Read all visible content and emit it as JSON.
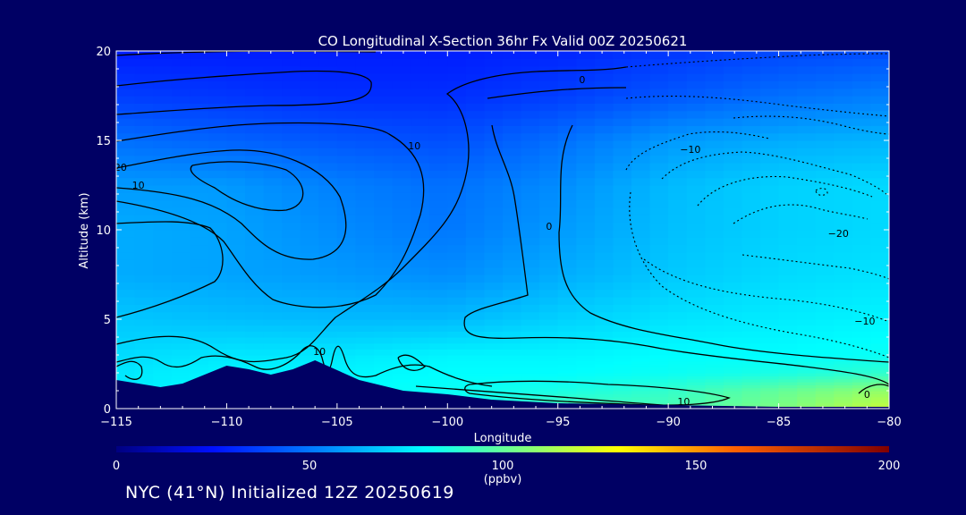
{
  "chart_data": {
    "type": "heatmap",
    "title": "CO Longitudinal X-Section 36hr  Fx Valid 00Z 20250621",
    "xlabel": "Longitude",
    "ylabel": "Altitude (km)",
    "xlim": [
      -115,
      -80
    ],
    "ylim": [
      0,
      20
    ],
    "x_ticks": [
      -115,
      -110,
      -105,
      -100,
      -95,
      -90,
      -85,
      -80
    ],
    "x_tick_labels": [
      "−115",
      "−110",
      "−105",
      "−100",
      "−95",
      "−90",
      "−85",
      "−80"
    ],
    "y_ticks": [
      0,
      5,
      10,
      15,
      20
    ],
    "x_grid": [
      -115,
      -110,
      -105,
      -100,
      -95,
      -90,
      -85,
      -80
    ],
    "y_grid": [
      0,
      1,
      2,
      3,
      5,
      7.5,
      10,
      12.5,
      15,
      17.5,
      20
    ],
    "co_field_ppbv": [
      [
        55,
        70,
        75,
        80,
        95,
        95,
        105,
        120
      ],
      [
        75,
        80,
        80,
        82,
        85,
        90,
        100,
        110
      ],
      [
        75,
        78,
        78,
        80,
        80,
        82,
        85,
        90
      ],
      [
        72,
        75,
        75,
        78,
        78,
        80,
        80,
        82
      ],
      [
        68,
        66,
        65,
        65,
        70,
        74,
        76,
        78
      ],
      [
        62,
        60,
        58,
        55,
        62,
        68,
        72,
        74
      ],
      [
        62,
        60,
        55,
        50,
        58,
        66,
        70,
        72
      ],
      [
        58,
        58,
        52,
        48,
        55,
        65,
        70,
        72
      ],
      [
        48,
        45,
        42,
        40,
        48,
        58,
        62,
        64
      ],
      [
        36,
        34,
        32,
        32,
        36,
        42,
        48,
        52
      ],
      [
        28,
        28,
        28,
        28,
        30,
        34,
        38,
        40
      ]
    ],
    "terrain_km": [
      [
        -115,
        1.6
      ],
      [
        -113,
        1.2
      ],
      [
        -112,
        1.4
      ],
      [
        -110,
        2.4
      ],
      [
        -109,
        2.2
      ],
      [
        -108,
        1.9
      ],
      [
        -107,
        2.2
      ],
      [
        -106,
        2.7
      ],
      [
        -104,
        1.6
      ],
      [
        -102,
        1.0
      ],
      [
        -100,
        0.8
      ],
      [
        -98,
        0.5
      ],
      [
        -95,
        0.3
      ],
      [
        -90,
        0.2
      ],
      [
        -85,
        0.1
      ],
      [
        -80,
        0.1
      ]
    ],
    "contour_labels": [
      {
        "text": "20",
        "x": -114.8,
        "y": 13.3
      },
      {
        "text": "10",
        "x": -114.0,
        "y": 12.3
      },
      {
        "text": "10",
        "x": -101.5,
        "y": 14.5
      },
      {
        "text": "0",
        "x": -93.9,
        "y": 18.2
      },
      {
        "text": "−10",
        "x": -89.0,
        "y": 14.3
      },
      {
        "text": "0",
        "x": -95.4,
        "y": 10.0
      },
      {
        "text": "−20",
        "x": -82.3,
        "y": 9.6
      },
      {
        "text": "−10",
        "x": -81.1,
        "y": 4.7
      },
      {
        "text": "10",
        "x": -105.8,
        "y": 3.0
      },
      {
        "text": "10",
        "x": -89.3,
        "y": 0.2
      },
      {
        "text": "0",
        "x": -81.0,
        "y": 0.6
      }
    ],
    "colorbar": {
      "min": 0,
      "max": 200,
      "ticks": [
        0,
        50,
        100,
        150,
        200
      ],
      "unit": "(ppbv)",
      "stops": [
        {
          "value": 0,
          "color": "#000080"
        },
        {
          "value": 25,
          "color": "#0010ff"
        },
        {
          "value": 55,
          "color": "#008cff"
        },
        {
          "value": 80,
          "color": "#00ffff"
        },
        {
          "value": 105,
          "color": "#7cff80"
        },
        {
          "value": 130,
          "color": "#ffff00"
        },
        {
          "value": 160,
          "color": "#ff6000"
        },
        {
          "value": 200,
          "color": "#800000"
        }
      ]
    }
  },
  "footer_text": "NYC (41°N) Initialized 12Z 20250619"
}
